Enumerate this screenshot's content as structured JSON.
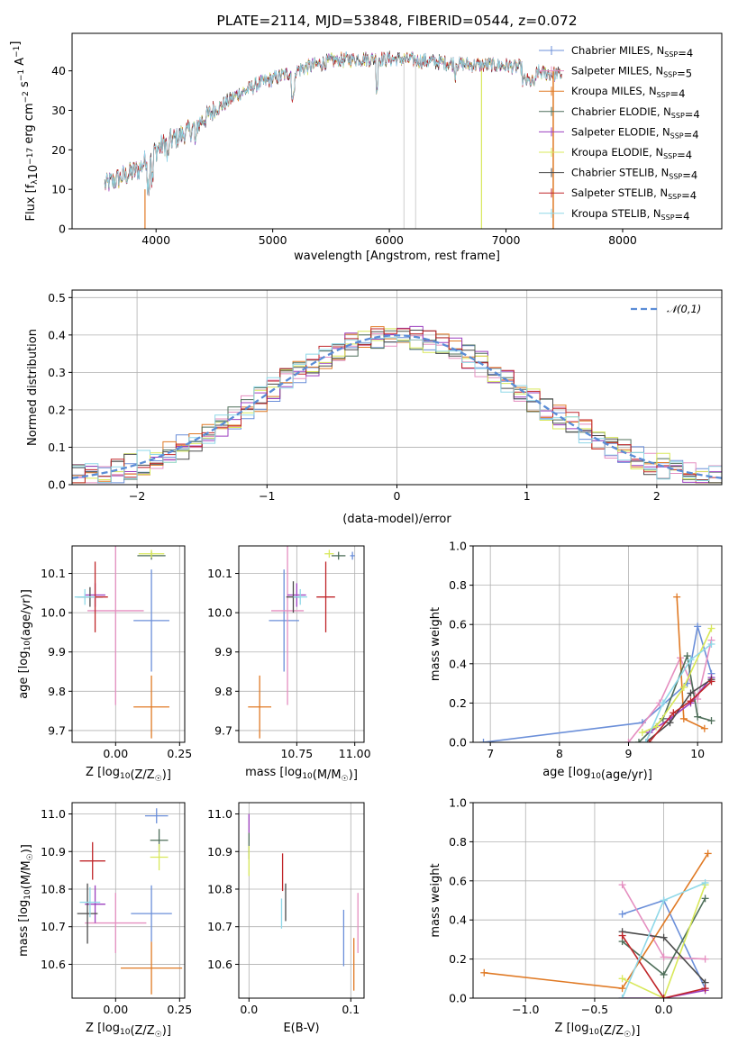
{
  "colors": [
    "#6b8fd9",
    "#e58fc0",
    "#e07a25",
    "#4f6f5a",
    "#9c3fbf",
    "#d8e85a",
    "#4a4a4a",
    "#c0262a",
    "#8fd8e8"
  ],
  "chart_data": [
    {
      "type": "line",
      "title": "PLATE=2114, MJD=53848, FIBERID=0544, z=0.072",
      "xlabel": "wavelength [Angstrom, rest frame]",
      "ylabel": "Flux [f_λ10^-17 erg cm^-2 s^-1 A^-1]",
      "xlim": [
        3280,
        8850
      ],
      "ylim": [
        0,
        49.5
      ],
      "xticks": [
        4000,
        5000,
        6000,
        7000,
        8000
      ],
      "yticks": [
        0,
        10,
        20,
        30,
        40
      ],
      "grid": false,
      "legend": "top-right",
      "series": [
        {
          "name": "Chabrier MILES, N_SSP=4"
        },
        {
          "name": "Salpeter MILES, N_SSP=5"
        },
        {
          "name": "Kroupa MILES, N_SSP=4"
        },
        {
          "name": "Chabrier ELODIE, N_SSP=4"
        },
        {
          "name": "Salpeter ELODIE, N_SSP=4"
        },
        {
          "name": "Kroupa ELODIE, N_SSP=4"
        },
        {
          "name": "Chabrier STELIB, N_SSP=4"
        },
        {
          "name": "Salpeter STELIB, N_SSP=4"
        },
        {
          "name": "Kroupa STELIB, N_SSP=4"
        }
      ],
      "continuum": {
        "x": [
          3550,
          3700,
          3850,
          3950,
          4100,
          4300,
          4500,
          4700,
          4900,
          5100,
          5300,
          5500,
          5700,
          5900,
          6100,
          6300,
          6500,
          6700,
          6900,
          7100,
          7300,
          7500
        ],
        "y": [
          11,
          13,
          15,
          19,
          22,
          25,
          30,
          34,
          37,
          39,
          41,
          42.5,
          43,
          43,
          43,
          42.5,
          42,
          41.5,
          41.5,
          41,
          39.5,
          39
        ]
      }
    },
    {
      "type": "histogram",
      "xlabel": "(data-model)/error",
      "ylabel": "Normed distribution",
      "xlim": [
        -2.5,
        2.5
      ],
      "ylim": [
        0,
        0.52
      ],
      "xticks": [
        -2,
        -1,
        0,
        1,
        2
      ],
      "yticks": [
        0.0,
        0.1,
        0.2,
        0.3,
        0.4,
        0.5
      ],
      "grid": true,
      "legend": "top-right",
      "reference_curve": "𝒩(0,1)"
    },
    {
      "type": "scatter",
      "xlabel": "Z [log10(Z/Z☉)]",
      "ylabel": "age [log10(age/yr)]",
      "xlim": [
        -0.17,
        0.27
      ],
      "ylim": [
        9.67,
        10.17
      ],
      "xticks": [
        -0.0,
        0.25
      ],
      "xticklabels": [
        "0.00",
        "0.25"
      ],
      "yticks": [
        9.7,
        9.8,
        9.9,
        10.0,
        10.1
      ],
      "grid": true,
      "points": [
        {
          "x": 0.14,
          "y": 9.98,
          "dx": 0.07,
          "dy": 0.13
        },
        {
          "x": 0.0,
          "y": 10.005,
          "dx": 0.11,
          "dy": 0.24
        },
        {
          "x": 0.14,
          "y": 9.76,
          "dx": 0.07,
          "dy": 0.08
        },
        {
          "x": 0.14,
          "y": 10.145,
          "dx": 0.055,
          "dy": 0.01
        },
        {
          "x": -0.08,
          "y": 10.045,
          "dx": 0.04,
          "dy": 0.03
        },
        {
          "x": 0.14,
          "y": 10.15,
          "dx": 0.05,
          "dy": 0.01
        },
        {
          "x": -0.1,
          "y": 10.04,
          "dx": 0.05,
          "dy": 0.025
        },
        {
          "x": -0.08,
          "y": 10.04,
          "dx": 0.05,
          "dy": 0.09
        },
        {
          "x": -0.12,
          "y": 10.04,
          "dx": 0.04,
          "dy": 0.02
        }
      ]
    },
    {
      "type": "scatter",
      "xlabel": "mass [log10(M/M☉)]",
      "ylabel": "",
      "xlim": [
        10.5,
        11.04
      ],
      "ylim": [
        9.67,
        10.17
      ],
      "xticks": [
        10.75,
        11.0
      ],
      "xticklabels": [
        "10.75",
        "11.00"
      ],
      "yticks": [
        9.7,
        9.8,
        9.9,
        10.0,
        10.1
      ],
      "grid": true,
      "points": [
        {
          "x": 10.695,
          "y": 9.98,
          "dx": 0.065,
          "dy": 0.13
        },
        {
          "x": 10.71,
          "y": 10.005,
          "dx": 0.07,
          "dy": 0.24
        },
        {
          "x": 10.59,
          "y": 9.76,
          "dx": 0.05,
          "dy": 0.08
        },
        {
          "x": 10.93,
          "y": 10.145,
          "dx": 0.03,
          "dy": 0.01
        },
        {
          "x": 10.75,
          "y": 10.045,
          "dx": 0.04,
          "dy": 0.03
        },
        {
          "x": 10.89,
          "y": 10.15,
          "dx": 0.02,
          "dy": 0.01
        },
        {
          "x": 10.735,
          "y": 10.04,
          "dx": 0.03,
          "dy": 0.04
        },
        {
          "x": 10.875,
          "y": 10.04,
          "dx": 0.04,
          "dy": 0.09
        },
        {
          "x": 10.765,
          "y": 10.04,
          "dx": 0.03,
          "dy": 0.02
        },
        {
          "x": 10.99,
          "y": 10.145,
          "dx": 0.01,
          "dy": 0.01
        }
      ]
    },
    {
      "type": "line",
      "xlabel": "age [log10(age/yr)]",
      "ylabel": "mass weight",
      "xlim": [
        6.75,
        10.35
      ],
      "ylim": [
        0,
        1.0
      ],
      "xticks": [
        7,
        8,
        9,
        10
      ],
      "yticks": [
        0.0,
        0.2,
        0.4,
        0.6,
        0.8,
        1.0
      ],
      "grid": true,
      "series": [
        {
          "x": [
            6.9,
            9.2,
            9.85,
            10.0,
            10.2
          ],
          "y": [
            0.0,
            0.1,
            0.3,
            0.59,
            0.35
          ]
        },
        {
          "x": [
            9.0,
            9.45,
            9.75,
            10.0,
            10.2
          ],
          "y": [
            0.0,
            0.2,
            0.43,
            0.22,
            0.52
          ]
        },
        {
          "x": [
            9.7,
            9.8,
            10.1
          ],
          "y": [
            0.74,
            0.12,
            0.07
          ]
        },
        {
          "x": [
            9.15,
            9.5,
            9.85,
            10.0,
            10.2
          ],
          "y": [
            0.0,
            0.12,
            0.44,
            0.13,
            0.11
          ]
        },
        {
          "x": [
            9.3,
            9.6,
            9.9,
            10.2
          ],
          "y": [
            0.05,
            0.12,
            0.2,
            0.33
          ]
        },
        {
          "x": [
            9.2,
            9.4,
            9.8,
            10.2
          ],
          "y": [
            0.05,
            0.08,
            0.28,
            0.58
          ]
        },
        {
          "x": [
            9.25,
            9.6,
            9.9,
            10.2
          ],
          "y": [
            0.0,
            0.1,
            0.25,
            0.32
          ]
        },
        {
          "x": [
            9.3,
            9.65,
            9.9,
            10.2
          ],
          "y": [
            0.0,
            0.15,
            0.21,
            0.31
          ]
        },
        {
          "x": [
            9.25,
            9.5,
            9.9,
            10.2
          ],
          "y": [
            0.0,
            0.2,
            0.42,
            0.5
          ]
        }
      ]
    },
    {
      "type": "scatter",
      "xlabel": "Z [log10(Z/Z☉)]",
      "ylabel": "mass [log10(M/M☉)]",
      "xlim": [
        -0.17,
        0.27
      ],
      "ylim": [
        10.51,
        11.03
      ],
      "xticks": [
        -0.0,
        0.25
      ],
      "xticklabels": [
        "0.00",
        "0.25"
      ],
      "yticks": [
        10.6,
        10.7,
        10.8,
        10.9,
        11.0
      ],
      "grid": true,
      "points": [
        {
          "x": 0.14,
          "y": 10.735,
          "dx": 0.08,
          "dy": 0.075
        },
        {
          "x": 0.0,
          "y": 10.71,
          "dx": 0.12,
          "dy": 0.08
        },
        {
          "x": 0.14,
          "y": 10.59,
          "dx": 0.12,
          "dy": 0.07
        },
        {
          "x": 0.17,
          "y": 10.93,
          "dx": 0.035,
          "dy": 0.03
        },
        {
          "x": -0.08,
          "y": 10.76,
          "dx": 0.04,
          "dy": 0.05
        },
        {
          "x": 0.17,
          "y": 10.885,
          "dx": 0.035,
          "dy": 0.035
        },
        {
          "x": -0.11,
          "y": 10.735,
          "dx": 0.04,
          "dy": 0.08
        },
        {
          "x": -0.09,
          "y": 10.875,
          "dx": 0.05,
          "dy": 0.05
        },
        {
          "x": -0.1,
          "y": 10.765,
          "dx": 0.04,
          "dy": 0.04
        },
        {
          "x": 0.16,
          "y": 10.995,
          "dx": 0.045,
          "dy": 0.02
        }
      ]
    },
    {
      "type": "scatter",
      "xlabel": "E(B-V)",
      "ylabel": "",
      "xlim": [
        -0.01,
        0.113
      ],
      "ylim": [
        10.51,
        11.03
      ],
      "xticks": [
        0.0,
        0.1
      ],
      "xticklabels": [
        "0.0",
        "0.1"
      ],
      "yticks": [
        10.6,
        10.7,
        10.8,
        10.9,
        11.0
      ],
      "grid": true,
      "points": [
        {
          "x": 0.093,
          "y": 10.67,
          "dx": 0,
          "dy": 0.075
        },
        {
          "x": 0.107,
          "y": 10.71,
          "dx": 0,
          "dy": 0.08
        },
        {
          "x": 0.103,
          "y": 10.6,
          "dx": 0,
          "dy": 0.07
        },
        {
          "x": 0.0,
          "y": 10.915,
          "dx": 0,
          "dy": 0.035
        },
        {
          "x": 0.0,
          "y": 10.975,
          "dx": 0,
          "dy": 0.025
        },
        {
          "x": 0.0,
          "y": 10.875,
          "dx": 0,
          "dy": 0.04
        },
        {
          "x": 0.036,
          "y": 10.765,
          "dx": 0,
          "dy": 0.05
        },
        {
          "x": 0.033,
          "y": 10.845,
          "dx": 0,
          "dy": 0.05
        },
        {
          "x": 0.032,
          "y": 10.735,
          "dx": 0,
          "dy": 0.04
        }
      ]
    },
    {
      "type": "line",
      "xlabel": "Z [log10(Z/Z☉)]",
      "ylabel": "mass weight",
      "xlim": [
        -1.38,
        0.42
      ],
      "ylim": [
        0,
        1.0
      ],
      "xticks": [
        -1.0,
        -0.5,
        0.0
      ],
      "xticklabels": [
        "−1.0",
        "−0.5",
        "0.0"
      ],
      "yticks": [
        0.0,
        0.2,
        0.4,
        0.6,
        0.8,
        1.0
      ],
      "grid": true,
      "series": [
        {
          "x": [
            -0.3,
            0.0,
            0.3
          ],
          "y": [
            0.43,
            0.5,
            0.05
          ]
        },
        {
          "x": [
            -0.3,
            0.0,
            0.3
          ],
          "y": [
            0.58,
            0.21,
            0.2
          ]
        },
        {
          "x": [
            -1.3,
            -0.3,
            0.32
          ],
          "y": [
            0.13,
            0.05,
            0.74
          ]
        },
        {
          "x": [
            -0.3,
            0.0,
            0.3
          ],
          "y": [
            0.29,
            0.12,
            0.51
          ]
        },
        {
          "x": [
            -0.3,
            0.0,
            0.3
          ],
          "y": [
            0.0,
            0.0,
            0.04
          ]
        },
        {
          "x": [
            -0.3,
            0.0,
            0.3
          ],
          "y": [
            0.1,
            0.0,
            0.58
          ]
        },
        {
          "x": [
            -0.3,
            0.0,
            0.3
          ],
          "y": [
            0.34,
            0.31,
            0.08
          ]
        },
        {
          "x": [
            -0.3,
            0.0,
            0.3
          ],
          "y": [
            0.32,
            0.0,
            0.05
          ]
        },
        {
          "x": [
            -0.3,
            0.0,
            0.3
          ],
          "y": [
            0.0,
            0.5,
            0.59
          ]
        }
      ]
    }
  ]
}
